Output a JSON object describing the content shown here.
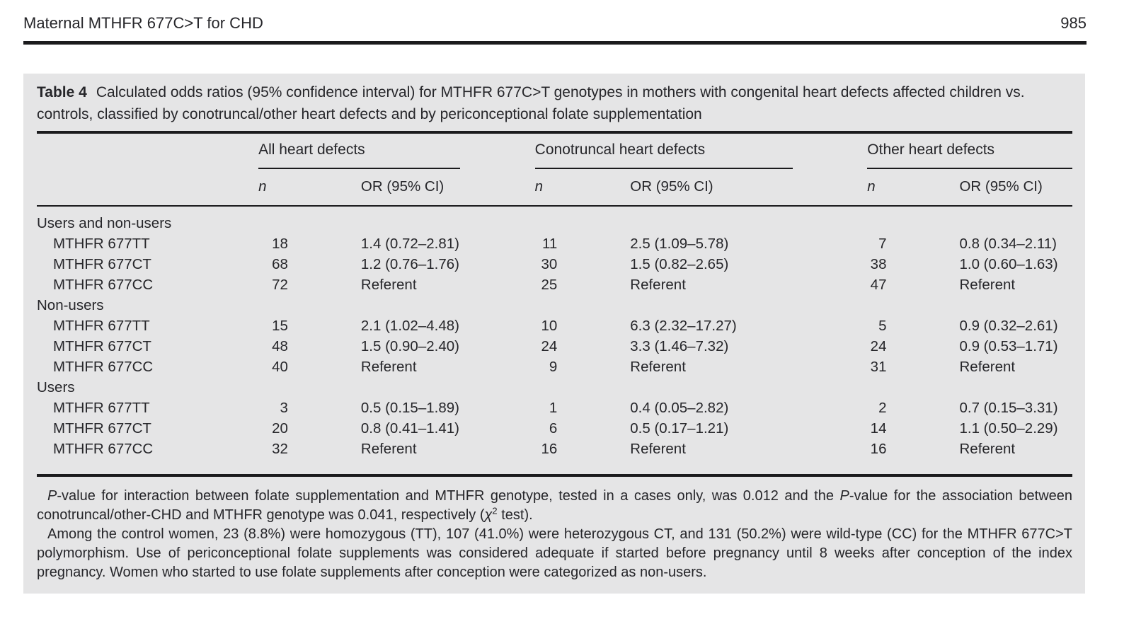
{
  "header": {
    "title": "Maternal MTHFR 677C>T for CHD",
    "page_number": "985"
  },
  "table": {
    "label": "Table 4",
    "caption": "Calculated odds ratios (95% confidence interval) for MTHFR 677C>T genotypes in mothers with congenital heart defects affected children vs. controls, classified by conotruncal/other heart defects and by periconceptional folate supplementation",
    "column_groups": [
      "All heart defects",
      "Conotruncal heart defects",
      "Other heart defects"
    ],
    "subheaders": {
      "n": "n",
      "or": "OR (95% CI)"
    },
    "sections": [
      {
        "label": "Users and non-users",
        "rows": [
          {
            "label": "MTHFR 677TT",
            "cells": [
              "18",
              "1.4 (0.72–2.81)",
              "11",
              "2.5 (1.09–5.78)",
              "7",
              "0.8 (0.34–2.11)"
            ]
          },
          {
            "label": "MTHFR 677CT",
            "cells": [
              "68",
              "1.2 (0.76–1.76)",
              "30",
              "1.5 (0.82–2.65)",
              "38",
              "1.0 (0.60–1.63)"
            ]
          },
          {
            "label": "MTHFR 677CC",
            "cells": [
              "72",
              "Referent",
              "25",
              "Referent",
              "47",
              "Referent"
            ]
          }
        ]
      },
      {
        "label": "Non-users",
        "rows": [
          {
            "label": "MTHFR 677TT",
            "cells": [
              "15",
              "2.1 (1.02–4.48)",
              "10",
              "6.3 (2.32–17.27)",
              "5",
              "0.9 (0.32–2.61)"
            ]
          },
          {
            "label": "MTHFR 677CT",
            "cells": [
              "48",
              "1.5 (0.90–2.40)",
              "24",
              "3.3 (1.46–7.32)",
              "24",
              "0.9 (0.53–1.71)"
            ]
          },
          {
            "label": "MTHFR 677CC",
            "cells": [
              "40",
              "Referent",
              "9",
              "Referent",
              "31",
              "Referent"
            ]
          }
        ]
      },
      {
        "label": "Users",
        "rows": [
          {
            "label": "MTHFR 677TT",
            "cells": [
              "3",
              "0.5 (0.15–1.89)",
              "1",
              "0.4 (0.05–2.82)",
              "2",
              "0.7 (0.15–3.31)"
            ]
          },
          {
            "label": "MTHFR 677CT",
            "cells": [
              "20",
              "0.8 (0.41–1.41)",
              "6",
              "0.5 (0.17–1.21)",
              "14",
              "1.1 (0.50–2.29)"
            ]
          },
          {
            "label": "MTHFR 677CC",
            "cells": [
              "32",
              "Referent",
              "16",
              "Referent",
              "16",
              "Referent"
            ]
          }
        ]
      }
    ],
    "footnote1": {
      "p1": "P",
      "s1": "-value for interaction between folate supplementation and MTHFR genotype, tested in a cases only, was 0.012 and the ",
      "p2": "P",
      "s2": "-value for the association between conotruncal/other-CHD and MTHFR genotype was 0.041, respectively (",
      "chi": "χ",
      "sup": "2",
      "s3": " test)."
    },
    "footnote2": "Among the control women, 23 (8.8%) were homozygous (TT), 107 (41.0%) were heterozygous CT, and 131 (50.2%) were wild-type (CC) for the MTHFR 677C>T polymorphism. Use of periconceptional folate supplements was considered adequate if started before pregnancy until 8 weeks after conception of the index pregnancy. Women who started to use folate supplements after conception were categorized as non-users."
  },
  "colors": {
    "panel_bg": "#e5e5e6",
    "text": "#26262a",
    "rule": "#1b1b1d"
  }
}
